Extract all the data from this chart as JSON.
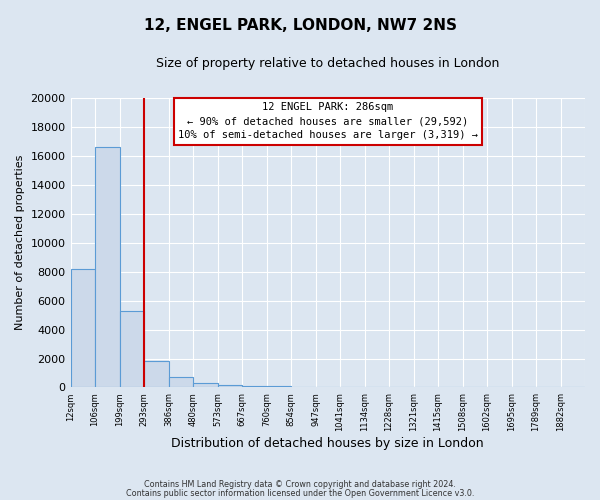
{
  "title": "12, ENGEL PARK, LONDON, NW7 2NS",
  "subtitle": "Size of property relative to detached houses in London",
  "xlabel": "Distribution of detached houses by size in London",
  "ylabel": "Number of detached properties",
  "bar_labels": [
    "12sqm",
    "106sqm",
    "199sqm",
    "293sqm",
    "386sqm",
    "480sqm",
    "573sqm",
    "667sqm",
    "760sqm",
    "854sqm",
    "947sqm",
    "1041sqm",
    "1134sqm",
    "1228sqm",
    "1321sqm",
    "1415sqm",
    "1508sqm",
    "1602sqm",
    "1695sqm",
    "1789sqm",
    "1882sqm"
  ],
  "bar_values": [
    8200,
    16600,
    5300,
    1850,
    750,
    300,
    180,
    90,
    90,
    0,
    0,
    0,
    0,
    0,
    0,
    0,
    0,
    0,
    0,
    0,
    0
  ],
  "bar_color": "#ccd9ea",
  "bar_edge_color": "#5b9bd5",
  "ylim": [
    0,
    20000
  ],
  "yticks": [
    0,
    2000,
    4000,
    6000,
    8000,
    10000,
    12000,
    14000,
    16000,
    18000,
    20000
  ],
  "red_line_x": 3.0,
  "annotation_title": "12 ENGEL PARK: 286sqm",
  "annotation_line1": "← 90% of detached houses are smaller (29,592)",
  "annotation_line2": "10% of semi-detached houses are larger (3,319) →",
  "annotation_box_color": "#ffffff",
  "annotation_box_edge": "#cc0000",
  "footer_line1": "Contains HM Land Registry data © Crown copyright and database right 2024.",
  "footer_line2": "Contains public sector information licensed under the Open Government Licence v3.0.",
  "bg_color": "#dce6f1",
  "plot_bg_color": "#dce6f1",
  "grid_color": "#ffffff"
}
